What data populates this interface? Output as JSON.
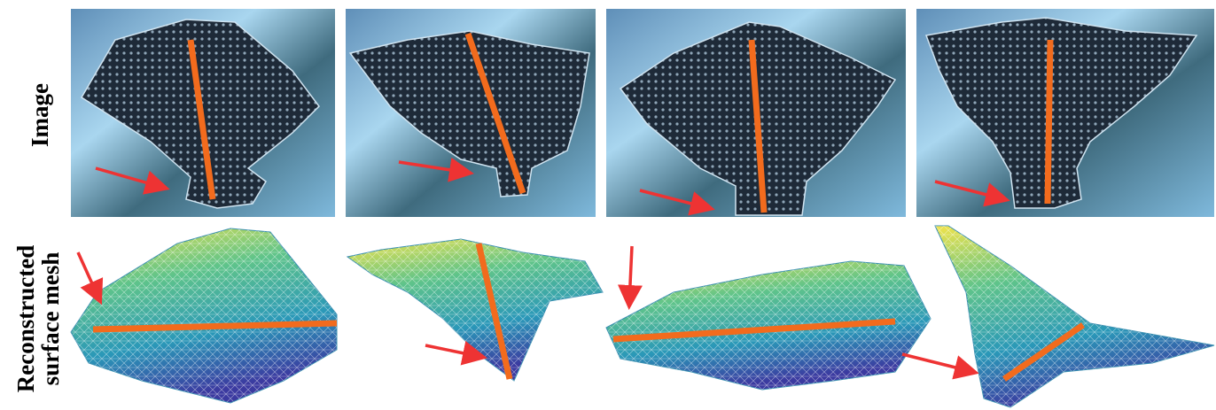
{
  "rows": [
    {
      "label": "Image"
    },
    {
      "label_lines": [
        "Reconstructed",
        "surface mesh"
      ]
    }
  ]
}
